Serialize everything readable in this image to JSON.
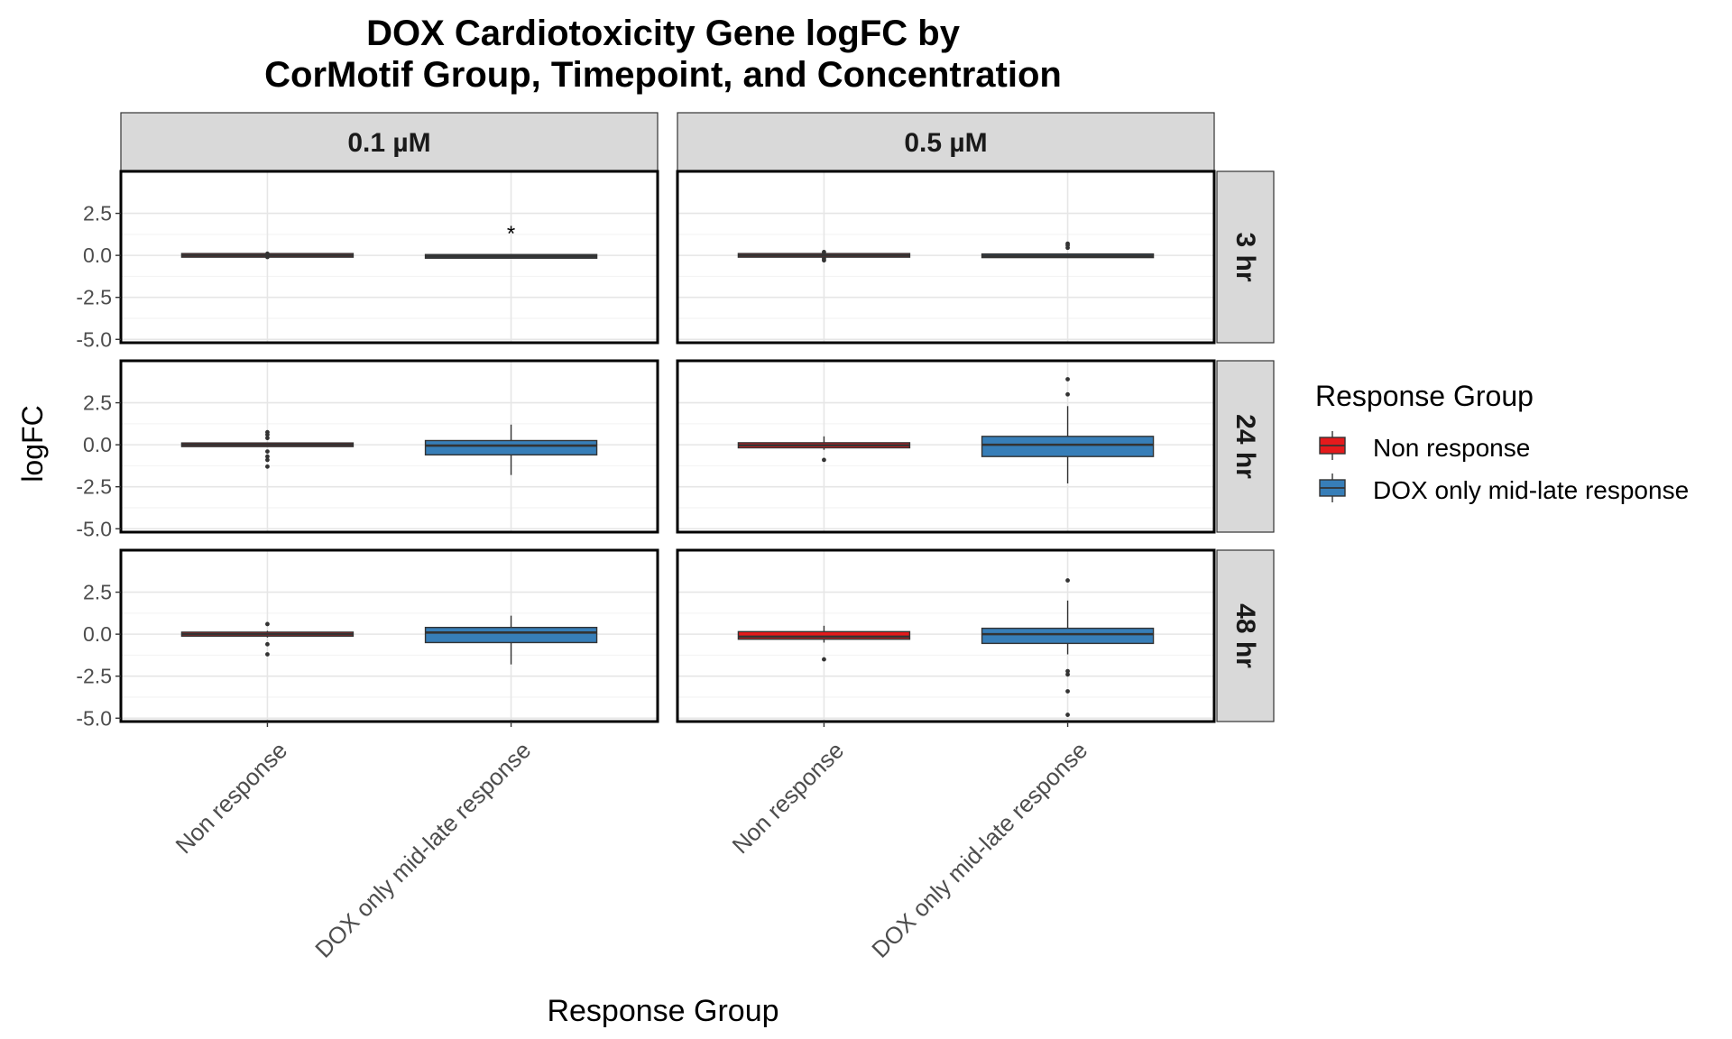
{
  "chart_data": {
    "type": "box",
    "title_lines": [
      "DOX Cardiotoxicity Gene logFC by",
      "CorMotif Group, Timepoint, and Concentration"
    ],
    "xlabel": "Response Group",
    "ylabel": "logFC",
    "categories": [
      "Non response",
      "DOX only mid-late response"
    ],
    "col_facets": [
      "0.1 µM",
      "0.5 µM"
    ],
    "row_facets": [
      "3 hr",
      "24 hr",
      "48 hr"
    ],
    "yticks": [
      2.5,
      0.0,
      -2.5,
      -5.0
    ],
    "ytick_labels": [
      "2.5",
      "0.0",
      "-2.5",
      "-5.0"
    ],
    "ylim": [
      -5.2,
      5.0
    ],
    "legend": {
      "title": "Response Group",
      "placement": "right",
      "items": [
        {
          "label": "Non response",
          "color": "#E41A1C"
        },
        {
          "label": "DOX only mid-late response",
          "color": "#377EB8"
        }
      ]
    },
    "annotations": [
      {
        "row": 0,
        "col": 0,
        "category": 1,
        "y": 1.4,
        "text": "*"
      }
    ],
    "panels": [
      {
        "row": 0,
        "col": 0,
        "boxes": [
          {
            "category": 0,
            "fill": "#E41A1C",
            "q1": -0.04,
            "median": 0.0,
            "q3": 0.04,
            "whisker_low": -0.06,
            "whisker_high": 0.06,
            "outliers": [
              0.1,
              -0.1
            ]
          },
          {
            "category": 1,
            "fill": "#377EB8",
            "q1": -0.12,
            "median": -0.06,
            "q3": 0.0,
            "whisker_low": -0.15,
            "whisker_high": 0.03,
            "outliers": []
          }
        ]
      },
      {
        "row": 0,
        "col": 1,
        "boxes": [
          {
            "category": 0,
            "fill": "#E41A1C",
            "q1": -0.04,
            "median": 0.0,
            "q3": 0.04,
            "whisker_low": -0.06,
            "whisker_high": 0.06,
            "outliers": [
              0.2,
              0.1,
              -0.2,
              -0.3
            ]
          },
          {
            "category": 1,
            "fill": "#377EB8",
            "q1": -0.08,
            "median": -0.03,
            "q3": 0.03,
            "whisker_low": -0.1,
            "whisker_high": 0.06,
            "outliers": [
              0.45,
              0.6,
              0.7
            ]
          }
        ]
      },
      {
        "row": 1,
        "col": 0,
        "boxes": [
          {
            "category": 0,
            "fill": "#E41A1C",
            "q1": -0.06,
            "median": 0.0,
            "q3": 0.06,
            "whisker_low": -0.1,
            "whisker_high": 0.1,
            "outliers": [
              0.75,
              0.6,
              0.4,
              -0.4,
              -0.7,
              -0.9,
              -1.3
            ]
          },
          {
            "category": 1,
            "fill": "#377EB8",
            "q1": -0.6,
            "median": -0.05,
            "q3": 0.25,
            "whisker_low": -1.8,
            "whisker_high": 1.2,
            "outliers": []
          }
        ]
      },
      {
        "row": 1,
        "col": 1,
        "boxes": [
          {
            "category": 0,
            "fill": "#E41A1C",
            "q1": -0.18,
            "median": -0.03,
            "q3": 0.12,
            "whisker_low": -0.3,
            "whisker_high": 0.5,
            "outliers": [
              -0.9
            ]
          },
          {
            "category": 1,
            "fill": "#377EB8",
            "q1": -0.7,
            "median": 0.0,
            "q3": 0.5,
            "whisker_low": -2.3,
            "whisker_high": 2.3,
            "outliers": [
              3.9,
              3.0
            ]
          }
        ]
      },
      {
        "row": 2,
        "col": 0,
        "boxes": [
          {
            "category": 0,
            "fill": "#E41A1C",
            "q1": -0.12,
            "median": 0.0,
            "q3": 0.12,
            "whisker_low": -0.2,
            "whisker_high": 0.2,
            "outliers": [
              0.6,
              -0.6,
              -1.2
            ]
          },
          {
            "category": 1,
            "fill": "#377EB8",
            "q1": -0.5,
            "median": 0.1,
            "q3": 0.4,
            "whisker_low": -1.8,
            "whisker_high": 1.1,
            "outliers": []
          }
        ]
      },
      {
        "row": 2,
        "col": 1,
        "boxes": [
          {
            "category": 0,
            "fill": "#E41A1C",
            "q1": -0.3,
            "median": -0.15,
            "q3": 0.15,
            "whisker_low": -0.5,
            "whisker_high": 0.5,
            "outliers": [
              -1.5
            ]
          },
          {
            "category": 1,
            "fill": "#377EB8",
            "q1": -0.55,
            "median": 0.0,
            "q3": 0.35,
            "whisker_low": -1.2,
            "whisker_high": 2.0,
            "outliers": [
              3.2,
              -2.2,
              -2.4,
              -3.4,
              -4.8
            ]
          }
        ]
      }
    ]
  }
}
